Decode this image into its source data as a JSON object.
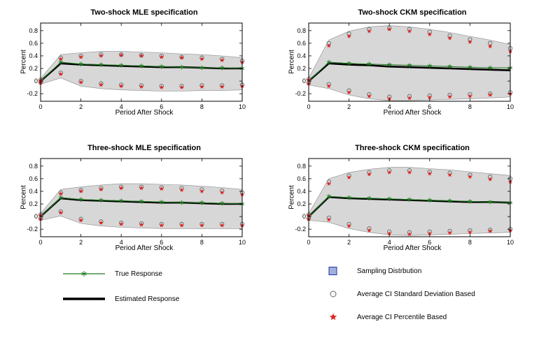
{
  "legend": {
    "true_response": "True Response",
    "estimated_response": "Estimated Response",
    "sampling_distribution": "Sampling Distrbution",
    "ci_sd": "Average CI Standard Deviation Based",
    "ci_pct": "Average CI Percentile Based"
  },
  "colors": {
    "band_fill": "#d7d7d7",
    "band_edge": "#8a8a8a",
    "true_line": "#1e7a1e",
    "estimated_line": "#000000",
    "circle_edge": "#666666",
    "star_fill": "#e02020",
    "legend_patch_fill": "#9fb0dc",
    "legend_patch_edge": "#2233aa"
  },
  "chart_data": [
    {
      "type": "line",
      "title": "Two-shock MLE specification",
      "xlabel": "Period After Shock",
      "ylabel": "Percent",
      "xlim": [
        0,
        10
      ],
      "ylim": [
        -0.32,
        0.92
      ],
      "xticks": [
        0,
        2,
        4,
        6,
        8,
        10
      ],
      "yticks": [
        -0.2,
        0,
        0.2,
        0.4,
        0.6,
        0.8
      ],
      "x": [
        0,
        1,
        2,
        3,
        4,
        5,
        6,
        7,
        8,
        9,
        10
      ],
      "series": {
        "true_response": [
          0,
          0.3,
          0.27,
          0.26,
          0.25,
          0.24,
          0.23,
          0.22,
          0.21,
          0.21,
          0.2
        ],
        "estimated_response": [
          0,
          0.28,
          0.26,
          0.25,
          0.24,
          0.23,
          0.22,
          0.22,
          0.21,
          0.2,
          0.2
        ],
        "ci_sd_upper": [
          0.02,
          0.37,
          0.4,
          0.42,
          0.42,
          0.41,
          0.4,
          0.38,
          0.37,
          0.35,
          0.32
        ],
        "ci_pct_upper": [
          0.01,
          0.35,
          0.38,
          0.4,
          0.41,
          0.4,
          0.38,
          0.37,
          0.35,
          0.33,
          0.3
        ],
        "ci_sd_lower": [
          -0.02,
          0.13,
          0.0,
          -0.04,
          -0.06,
          -0.07,
          -0.08,
          -0.08,
          -0.07,
          -0.07,
          -0.06
        ],
        "ci_pct_lower": [
          -0.03,
          0.11,
          -0.02,
          -0.06,
          -0.08,
          -0.09,
          -0.1,
          -0.1,
          -0.09,
          -0.09,
          -0.08
        ],
        "band_upper": [
          0.04,
          0.42,
          0.45,
          0.47,
          0.47,
          0.46,
          0.45,
          0.43,
          0.42,
          0.4,
          0.37
        ],
        "band_lower": [
          -0.05,
          0.05,
          -0.08,
          -0.12,
          -0.14,
          -0.15,
          -0.16,
          -0.16,
          -0.15,
          -0.15,
          -0.14
        ]
      }
    },
    {
      "type": "line",
      "title": "Two-shock CKM specification",
      "xlabel": "Period After Shock",
      "ylabel": "Percent",
      "xlim": [
        0,
        10
      ],
      "ylim": [
        -0.32,
        0.92
      ],
      "xticks": [
        0,
        2,
        4,
        6,
        8,
        10
      ],
      "yticks": [
        -0.2,
        0,
        0.2,
        0.4,
        0.6,
        0.8
      ],
      "x": [
        0,
        1,
        2,
        3,
        4,
        5,
        6,
        7,
        8,
        9,
        10
      ],
      "series": {
        "true_response": [
          0,
          0.3,
          0.28,
          0.27,
          0.26,
          0.25,
          0.24,
          0.23,
          0.22,
          0.21,
          0.21
        ],
        "estimated_response": [
          0,
          0.28,
          0.26,
          0.25,
          0.23,
          0.22,
          0.21,
          0.2,
          0.19,
          0.18,
          0.17
        ],
        "ci_sd_upper": [
          0.03,
          0.6,
          0.75,
          0.82,
          0.84,
          0.82,
          0.78,
          0.72,
          0.66,
          0.6,
          0.52
        ],
        "ci_pct_upper": [
          0.02,
          0.56,
          0.71,
          0.79,
          0.82,
          0.79,
          0.74,
          0.68,
          0.62,
          0.55,
          0.47
        ],
        "ci_sd_lower": [
          -0.03,
          -0.05,
          -0.15,
          -0.21,
          -0.25,
          -0.24,
          -0.23,
          -0.22,
          -0.21,
          -0.2,
          -0.18
        ],
        "ci_pct_lower": [
          -0.04,
          -0.08,
          -0.18,
          -0.24,
          -0.28,
          -0.27,
          -0.26,
          -0.25,
          -0.24,
          -0.22,
          -0.2
        ],
        "band_upper": [
          0.05,
          0.65,
          0.79,
          0.86,
          0.88,
          0.86,
          0.82,
          0.77,
          0.71,
          0.65,
          0.58
        ],
        "band_lower": [
          -0.06,
          -0.12,
          -0.22,
          -0.28,
          -0.31,
          -0.31,
          -0.3,
          -0.29,
          -0.28,
          -0.27,
          -0.25
        ]
      }
    },
    {
      "type": "line",
      "title": "Three-shock MLE specification",
      "xlabel": "Period After Shock",
      "ylabel": "Percent",
      "xlim": [
        0,
        10
      ],
      "ylim": [
        -0.32,
        0.92
      ],
      "xticks": [
        0,
        2,
        4,
        6,
        8,
        10
      ],
      "yticks": [
        -0.2,
        0,
        0.2,
        0.4,
        0.6,
        0.8
      ],
      "x": [
        0,
        1,
        2,
        3,
        4,
        5,
        6,
        7,
        8,
        9,
        10
      ],
      "series": {
        "true_response": [
          0,
          0.3,
          0.27,
          0.26,
          0.25,
          0.24,
          0.23,
          0.22,
          0.22,
          0.21,
          0.2
        ],
        "estimated_response": [
          0,
          0.29,
          0.26,
          0.25,
          0.24,
          0.23,
          0.22,
          0.22,
          0.21,
          0.2,
          0.2
        ],
        "ci_sd_upper": [
          0.03,
          0.38,
          0.42,
          0.45,
          0.47,
          0.47,
          0.46,
          0.45,
          0.43,
          0.41,
          0.38
        ],
        "ci_pct_upper": [
          0.02,
          0.36,
          0.4,
          0.43,
          0.45,
          0.45,
          0.44,
          0.42,
          0.4,
          0.38,
          0.35
        ],
        "ci_sd_lower": [
          -0.03,
          0.08,
          -0.04,
          -0.08,
          -0.1,
          -0.11,
          -0.12,
          -0.12,
          -0.12,
          -0.12,
          -0.12
        ],
        "ci_pct_lower": [
          -0.04,
          0.06,
          -0.06,
          -0.1,
          -0.12,
          -0.13,
          -0.14,
          -0.14,
          -0.14,
          -0.14,
          -0.14
        ],
        "band_upper": [
          0.05,
          0.43,
          0.47,
          0.5,
          0.52,
          0.52,
          0.51,
          0.5,
          0.48,
          0.46,
          0.43
        ],
        "band_lower": [
          -0.06,
          0.01,
          -0.11,
          -0.15,
          -0.17,
          -0.18,
          -0.19,
          -0.19,
          -0.19,
          -0.19,
          -0.19
        ]
      }
    },
    {
      "type": "line",
      "title": "Three-shock CKM specification",
      "xlabel": "Period After Shock",
      "ylabel": "Percent",
      "xlim": [
        0,
        10
      ],
      "ylim": [
        -0.32,
        0.92
      ],
      "xticks": [
        0,
        2,
        4,
        6,
        8,
        10
      ],
      "yticks": [
        -0.2,
        0,
        0.2,
        0.4,
        0.6,
        0.8
      ],
      "x": [
        0,
        1,
        2,
        3,
        4,
        5,
        6,
        7,
        8,
        9,
        10
      ],
      "series": {
        "true_response": [
          0,
          0.32,
          0.3,
          0.29,
          0.28,
          0.27,
          0.26,
          0.25,
          0.24,
          0.23,
          0.22
        ],
        "estimated_response": [
          0,
          0.31,
          0.29,
          0.28,
          0.27,
          0.26,
          0.25,
          0.24,
          0.23,
          0.23,
          0.22
        ],
        "ci_sd_upper": [
          0.03,
          0.55,
          0.65,
          0.7,
          0.73,
          0.73,
          0.71,
          0.69,
          0.66,
          0.63,
          0.6
        ],
        "ci_pct_upper": [
          0.02,
          0.52,
          0.62,
          0.67,
          0.7,
          0.7,
          0.68,
          0.66,
          0.63,
          0.59,
          0.55
        ],
        "ci_sd_lower": [
          -0.03,
          -0.02,
          -0.12,
          -0.19,
          -0.24,
          -0.25,
          -0.24,
          -0.23,
          -0.22,
          -0.21,
          -0.2
        ],
        "ci_pct_lower": [
          -0.04,
          -0.05,
          -0.15,
          -0.22,
          -0.27,
          -0.28,
          -0.27,
          -0.26,
          -0.25,
          -0.23,
          -0.22
        ],
        "band_upper": [
          0.05,
          0.6,
          0.7,
          0.75,
          0.78,
          0.78,
          0.76,
          0.74,
          0.71,
          0.68,
          0.65
        ],
        "band_lower": [
          -0.06,
          -0.09,
          -0.19,
          -0.25,
          -0.29,
          -0.3,
          -0.29,
          -0.28,
          -0.27,
          -0.26,
          -0.25
        ]
      }
    }
  ]
}
